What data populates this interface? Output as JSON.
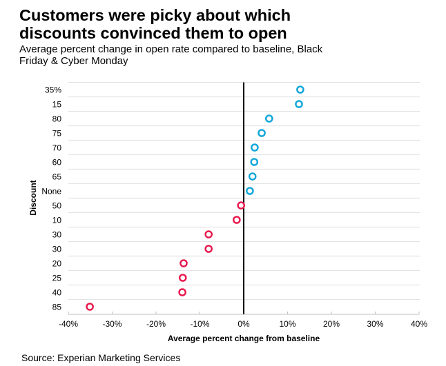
{
  "title_line1": "Customers were picky about which",
  "title_line2": "discounts convinced them to open",
  "subtitle_line1": "Average percent change in open rate compared to baseline, Black",
  "subtitle_line2": "Friday & Cyber Monday",
  "source": "Source: Experian Marketing Services",
  "colors": {
    "positive": "#0ea5d9",
    "negative": "#e8174b",
    "grid": "#e3e3e3",
    "zero_line": "#000000"
  },
  "chart_data": {
    "type": "scatter",
    "title": "Customers were picky about which discounts convinced them to open",
    "subtitle": "Average percent change in open rate compared to baseline, Black Friday & Cyber Monday",
    "xlabel": "Average percent change from baseline",
    "ylabel": "Discount",
    "xlim": [
      -40,
      40
    ],
    "x_ticks": [
      -40,
      -30,
      -20,
      -10,
      0,
      10,
      20,
      30,
      40
    ],
    "x_tick_labels": [
      "-40%",
      "-30%",
      "-20%",
      "-10%",
      "0%",
      "10%",
      "20%",
      "30%",
      "40%"
    ],
    "grid": "horizontal",
    "categories": [
      "35%",
      "15",
      "80",
      "75",
      "70",
      "60",
      "65",
      "None",
      "50",
      "10",
      "30",
      "30",
      "20",
      "25",
      "40",
      "85"
    ],
    "values": [
      12.9,
      12.6,
      5.8,
      4.1,
      2.5,
      2.4,
      2.0,
      1.4,
      -0.6,
      -1.6,
      -8.0,
      -8.0,
      -13.7,
      -13.9,
      -14.0,
      -35.1
    ]
  }
}
